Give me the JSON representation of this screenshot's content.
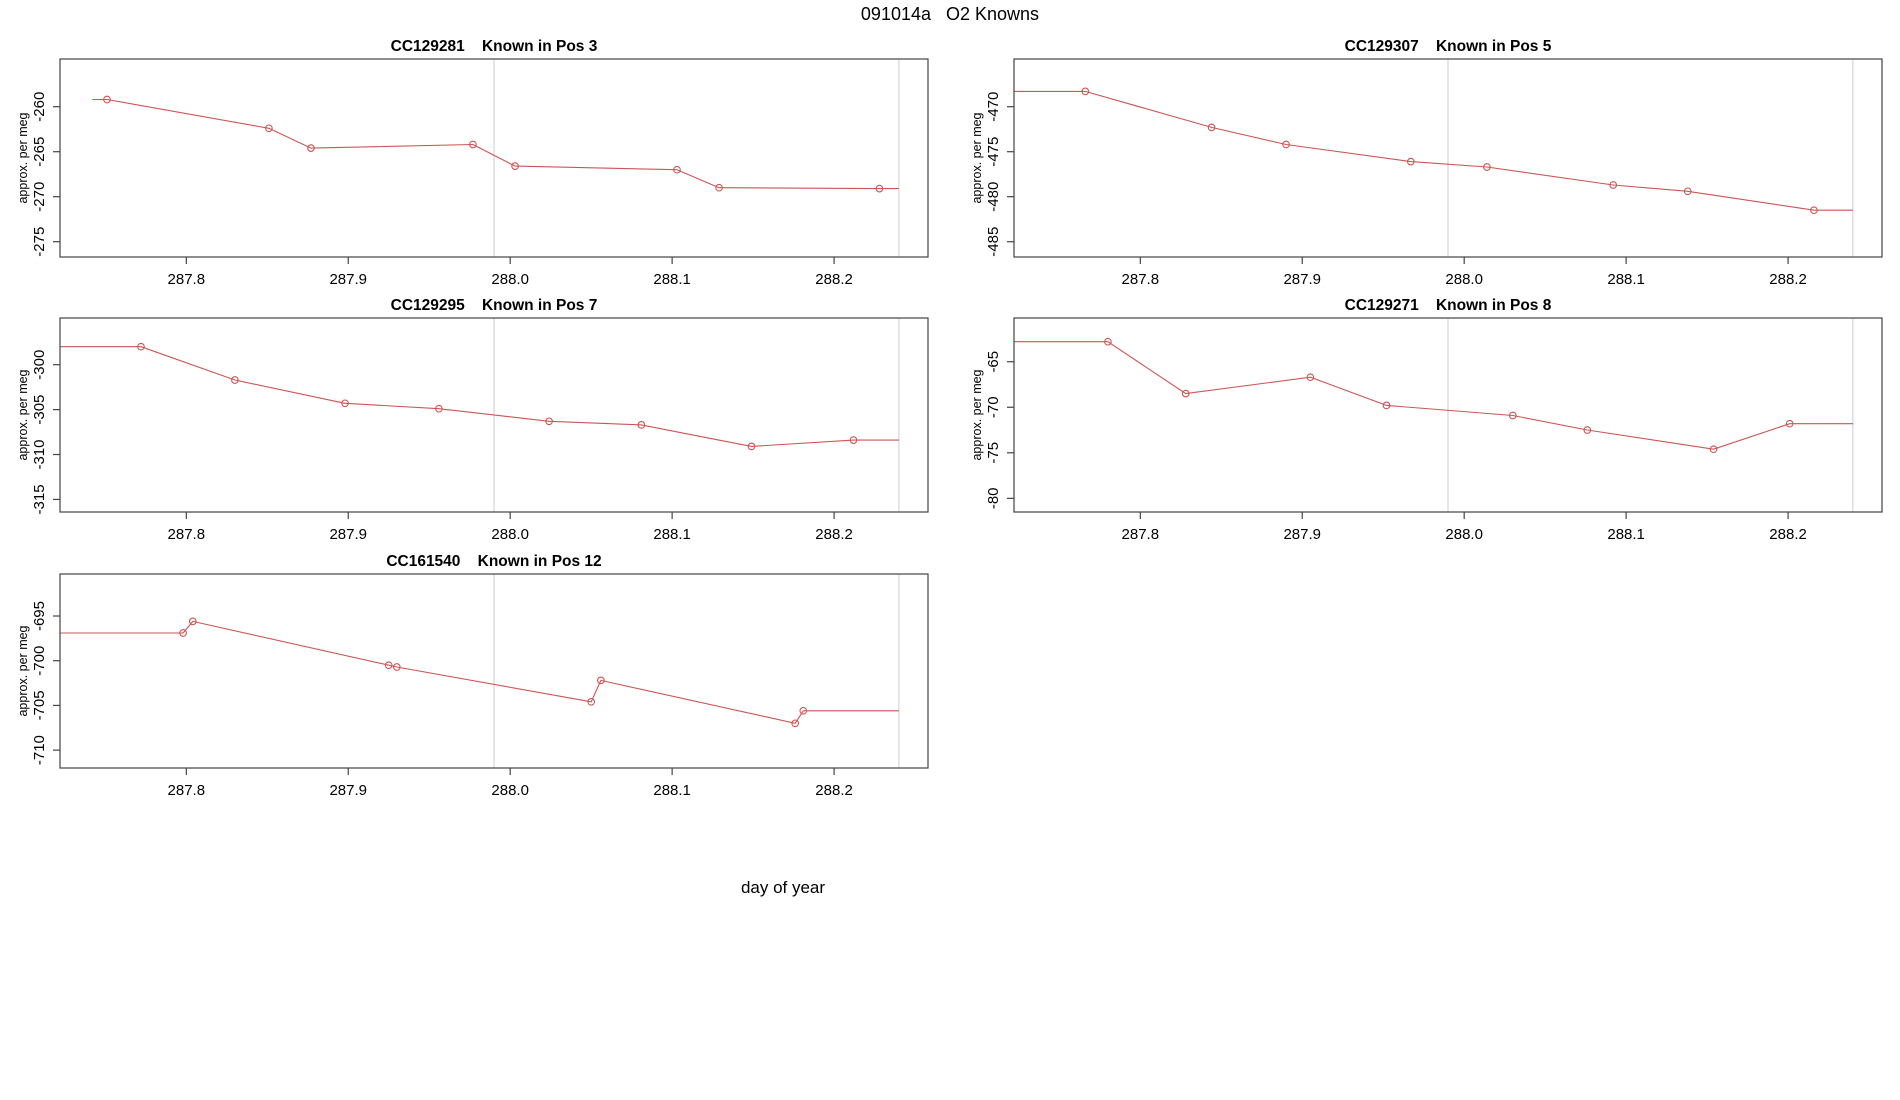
{
  "page": {
    "main_title": "091014a   O2 Knowns",
    "outer_xlabel": "day of year"
  },
  "colors": {
    "series": "#CD5555",
    "axis": "#444444",
    "grid_vline": "#DCDCDC",
    "text": "#000000",
    "background": "#FFFFFF"
  },
  "chart_data": [
    {
      "type": "line",
      "title": "CC129281    Known in Pos 3",
      "ylabel": "approx. per meg",
      "x": [
        287.751,
        287.851,
        287.877,
        287.977,
        288.003,
        288.103,
        288.129,
        288.228
      ],
      "y": [
        -259.2,
        -262.4,
        -264.6,
        -264.2,
        -266.6,
        -267.0,
        -269.0,
        -269.1
      ],
      "lead_x": 287.742,
      "tail_x": 288.24,
      "xlim": [
        287.722,
        288.258
      ],
      "ylim": [
        -276.7,
        -254.7
      ],
      "xticks": [
        "287.8",
        "287.9",
        "288.0",
        "288.1",
        "288.2"
      ],
      "xtick_values": [
        287.8,
        287.9,
        288.0,
        288.1,
        288.2
      ],
      "yticks": [
        "-260",
        "-265",
        "-270",
        "-275"
      ],
      "ytick_values": [
        -260,
        -265,
        -270,
        -275
      ],
      "vlines": [
        287.99,
        288.24
      ],
      "grid": false,
      "legend": null
    },
    {
      "type": "line",
      "title": "CC129307    Known in Pos 5",
      "ylabel": "approx. per meg",
      "x": [
        287.766,
        287.844,
        287.89,
        287.967,
        288.014,
        288.092,
        288.138,
        288.216
      ],
      "y": [
        -468.3,
        -472.3,
        -474.2,
        -476.1,
        -476.7,
        -478.7,
        -479.4,
        -481.5
      ],
      "lead_x": 287.722,
      "tail_x": 288.24,
      "xlim": [
        287.722,
        288.258
      ],
      "ylim": [
        -486.7,
        -464.7
      ],
      "xticks": [
        "287.8",
        "287.9",
        "288.0",
        "288.1",
        "288.2"
      ],
      "xtick_values": [
        287.8,
        287.9,
        288.0,
        288.1,
        288.2
      ],
      "yticks": [
        "-470",
        "-475",
        "-480",
        "-485"
      ],
      "ytick_values": [
        -470,
        -475,
        -480,
        -485
      ],
      "vlines": [
        287.99,
        288.24
      ],
      "grid": false,
      "legend": null
    },
    {
      "type": "line",
      "title": "CC129295    Known in Pos 7",
      "ylabel": "approx. per meg",
      "x": [
        287.772,
        287.83,
        287.898,
        287.956,
        288.024,
        288.081,
        288.149,
        288.212
      ],
      "y": [
        -298.0,
        -301.7,
        -304.3,
        -304.9,
        -306.3,
        -306.7,
        -309.1,
        -308.4
      ],
      "lead_x": 287.722,
      "tail_x": 288.24,
      "xlim": [
        287.722,
        288.258
      ],
      "ylim": [
        -316.4,
        -294.8
      ],
      "xticks": [
        "287.8",
        "287.9",
        "288.0",
        "288.1",
        "288.2"
      ],
      "xtick_values": [
        287.8,
        287.9,
        288.0,
        288.1,
        288.2
      ],
      "yticks": [
        "-300",
        "-305",
        "-310",
        "-315"
      ],
      "ytick_values": [
        -300,
        -305,
        -310,
        -315
      ],
      "vlines": [
        287.99,
        288.24
      ],
      "grid": false,
      "legend": null
    },
    {
      "type": "line",
      "title": "CC129271    Known in Pos 8",
      "ylabel": "approx. per meg",
      "x": [
        287.78,
        287.828,
        287.905,
        287.952,
        288.03,
        288.076,
        288.154,
        288.201
      ],
      "y": [
        -62.8,
        -68.5,
        -66.7,
        -69.8,
        -70.9,
        -72.5,
        -74.6,
        -71.8
      ],
      "lead_x": 287.722,
      "tail_x": 288.24,
      "xlim": [
        287.722,
        288.258
      ],
      "ylim": [
        -81.5,
        -60.2
      ],
      "xticks": [
        "287.8",
        "287.9",
        "288.0",
        "288.1",
        "288.2"
      ],
      "xtick_values": [
        287.8,
        287.9,
        288.0,
        288.1,
        288.2
      ],
      "yticks": [
        "-65",
        "-70",
        "-75",
        "-80"
      ],
      "ytick_values": [
        -65,
        -70,
        -75,
        -80
      ],
      "vlines": [
        287.99,
        288.24
      ],
      "grid": false,
      "legend": null
    },
    {
      "type": "line",
      "title": "CC161540    Known in Pos 12",
      "ylabel": "approx. per meg",
      "x": [
        287.798,
        287.804,
        287.925,
        287.93,
        288.05,
        288.056,
        288.176,
        288.181
      ],
      "y": [
        -696.9,
        -695.6,
        -700.5,
        -700.7,
        -704.6,
        -702.2,
        -707.0,
        -705.6
      ],
      "lead_x": 287.722,
      "tail_x": 288.24,
      "xlim": [
        287.722,
        288.258
      ],
      "ylim": [
        -712.0,
        -690.3
      ],
      "xticks": [
        "287.8",
        "287.9",
        "288.0",
        "288.1",
        "288.2"
      ],
      "xtick_values": [
        287.8,
        287.9,
        288.0,
        288.1,
        288.2
      ],
      "yticks": [
        "-695",
        "-700",
        "-705",
        "-710"
      ],
      "ytick_values": [
        -695,
        -700,
        -705,
        -710
      ],
      "vlines": [
        287.99,
        288.24
      ],
      "grid": false,
      "legend": null
    }
  ]
}
